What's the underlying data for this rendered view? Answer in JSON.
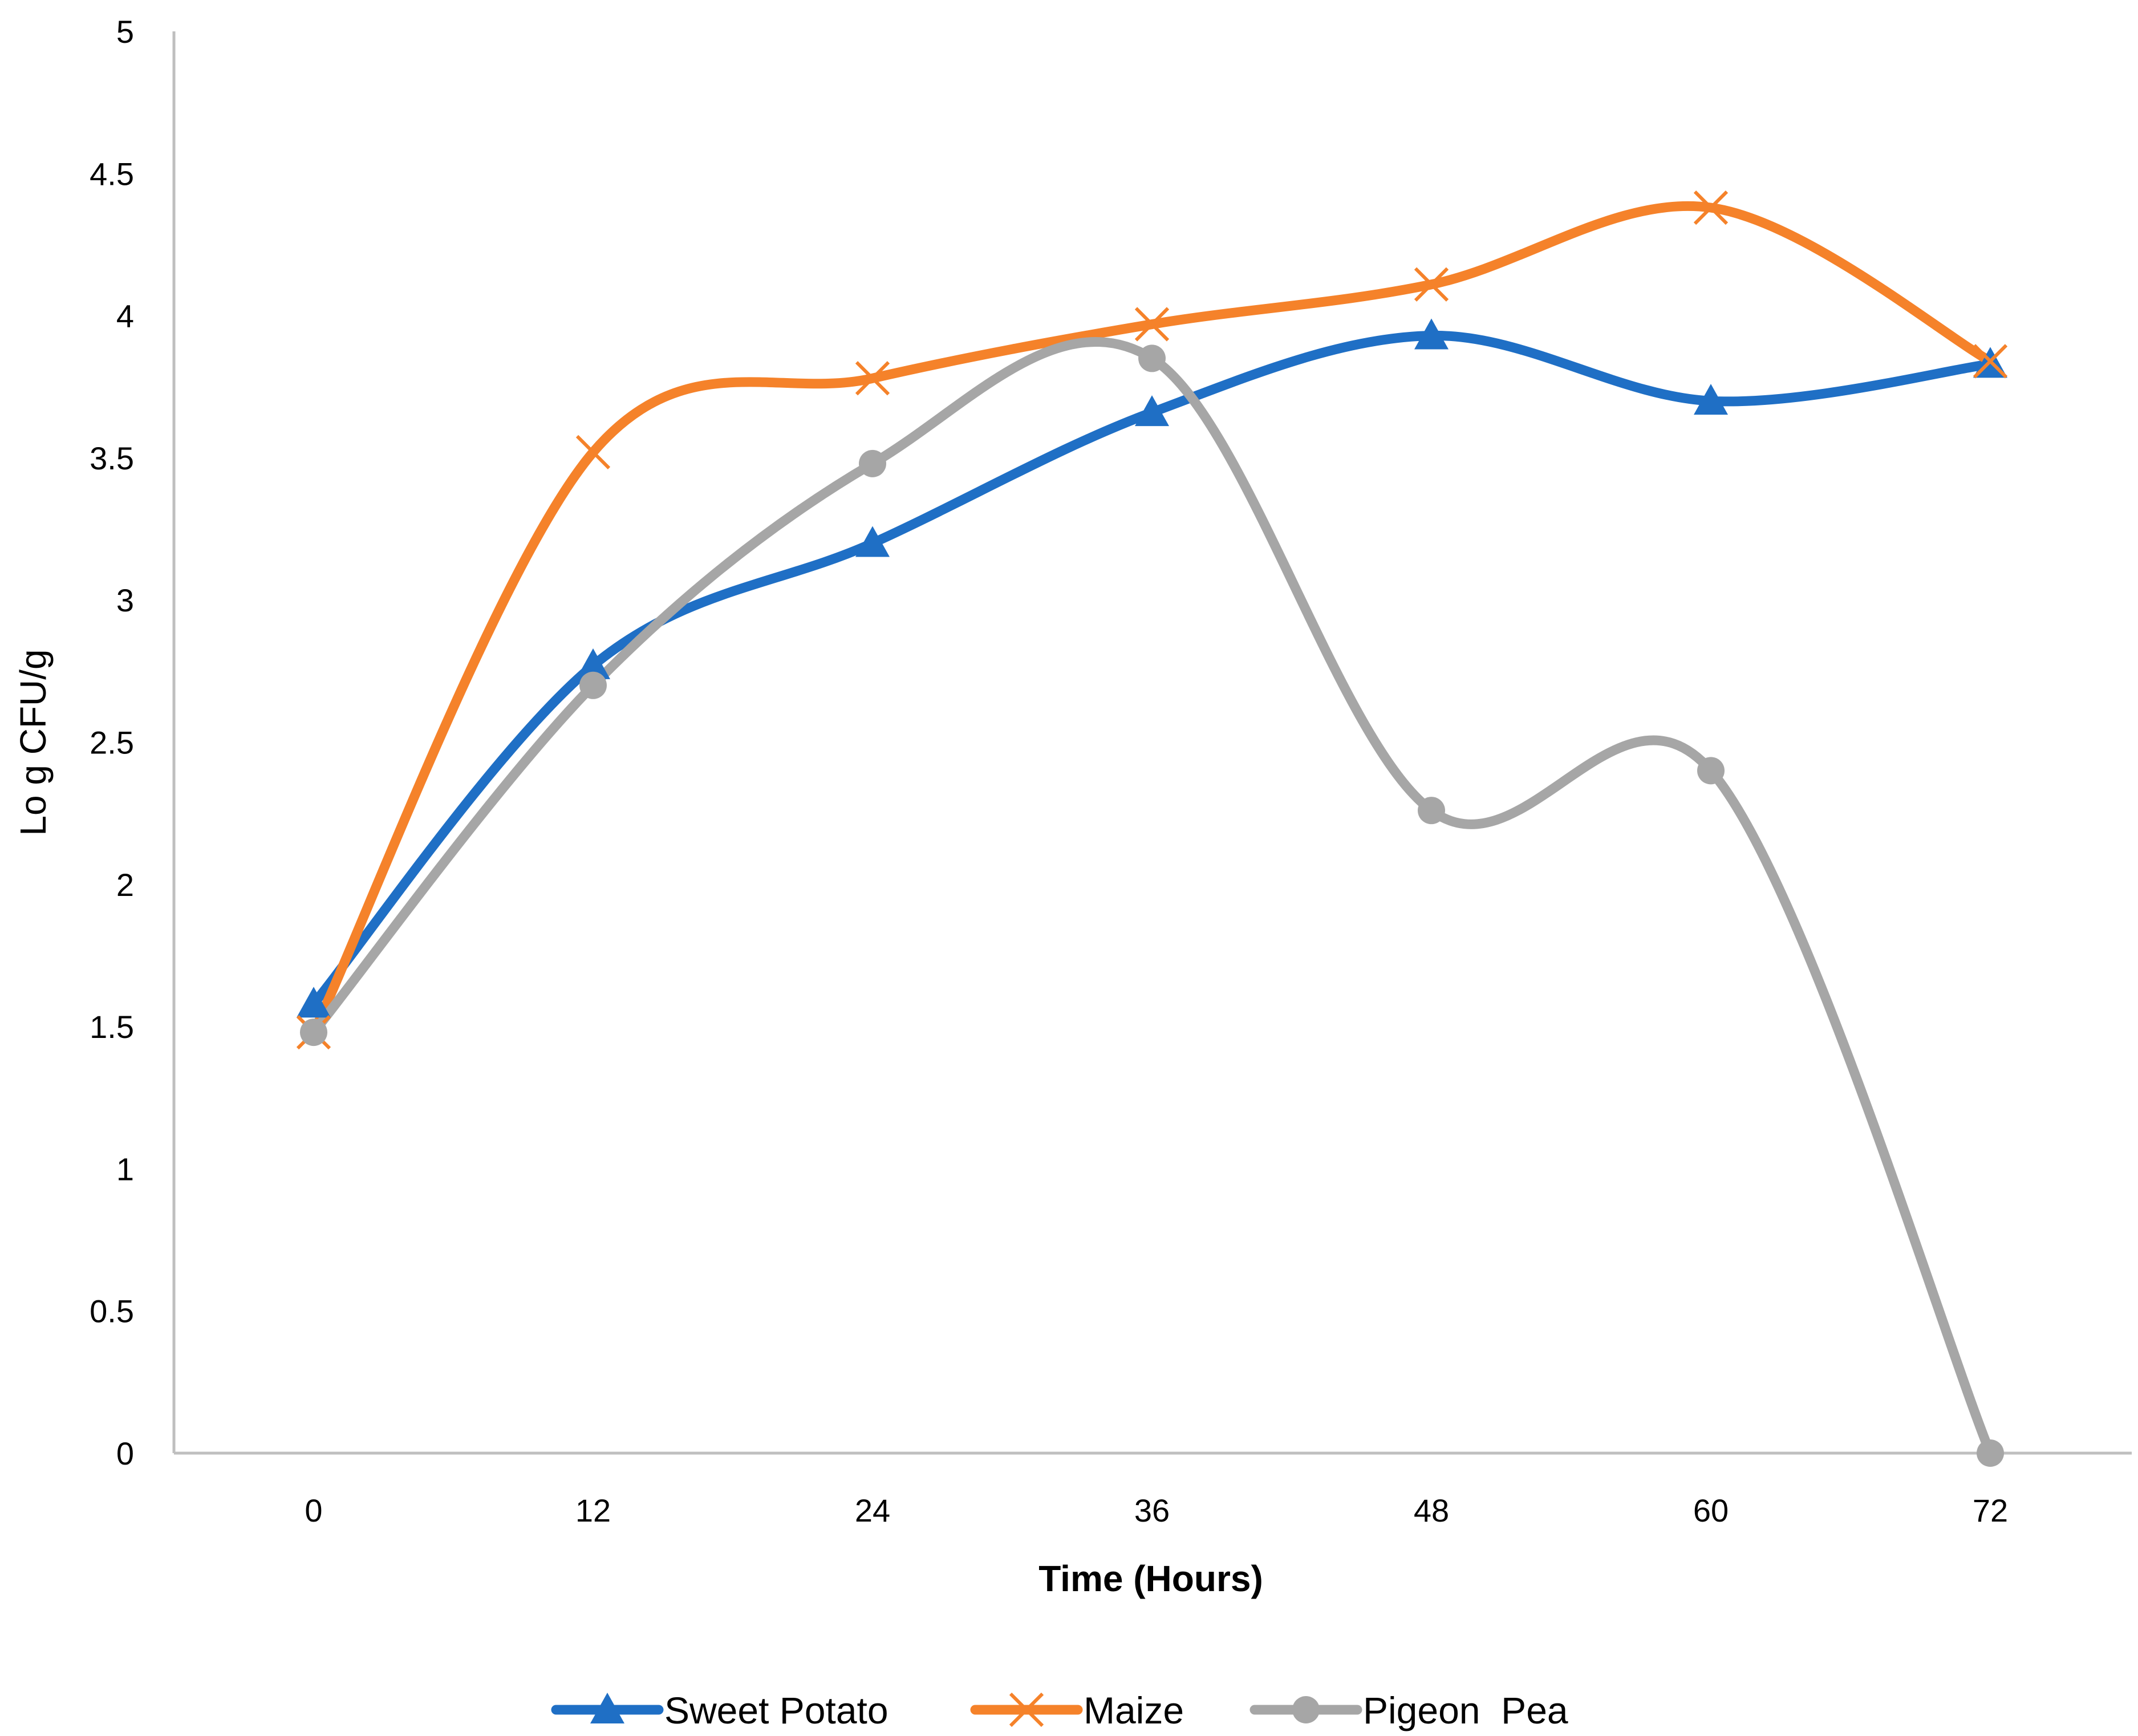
{
  "chart_data": {
    "type": "line",
    "title": "",
    "xlabel": "Time (Hours)",
    "ylabel": "Lo g CFU/g",
    "x": [
      0,
      12,
      24,
      36,
      48,
      60,
      72
    ],
    "categories": [
      "0",
      "12",
      "24",
      "36",
      "48",
      "60",
      "72"
    ],
    "ylim": [
      0,
      5
    ],
    "yticks": [
      "0",
      "0.5",
      "1",
      "1.5",
      "2",
      "2.5",
      "3",
      "3.5",
      "4",
      "4.5",
      "5"
    ],
    "grid": false,
    "smooth": true,
    "legend_position": "bottom",
    "series": [
      {
        "name": "Sweet Potato",
        "color": "#1F6FC5",
        "marker": "triangle",
        "values": [
          1.58,
          2.77,
          3.2,
          3.66,
          3.93,
          3.7,
          3.83
        ]
      },
      {
        "name": "Maize",
        "color": "#F5822A",
        "marker": "x",
        "values": [
          1.48,
          3.52,
          3.78,
          3.97,
          4.11,
          4.38,
          3.84
        ]
      },
      {
        "name": "Pigeon  Pea",
        "color": "#A6A6A6",
        "marker": "circle",
        "values": [
          1.48,
          2.7,
          3.48,
          3.85,
          2.26,
          2.4,
          0.0
        ]
      }
    ]
  }
}
